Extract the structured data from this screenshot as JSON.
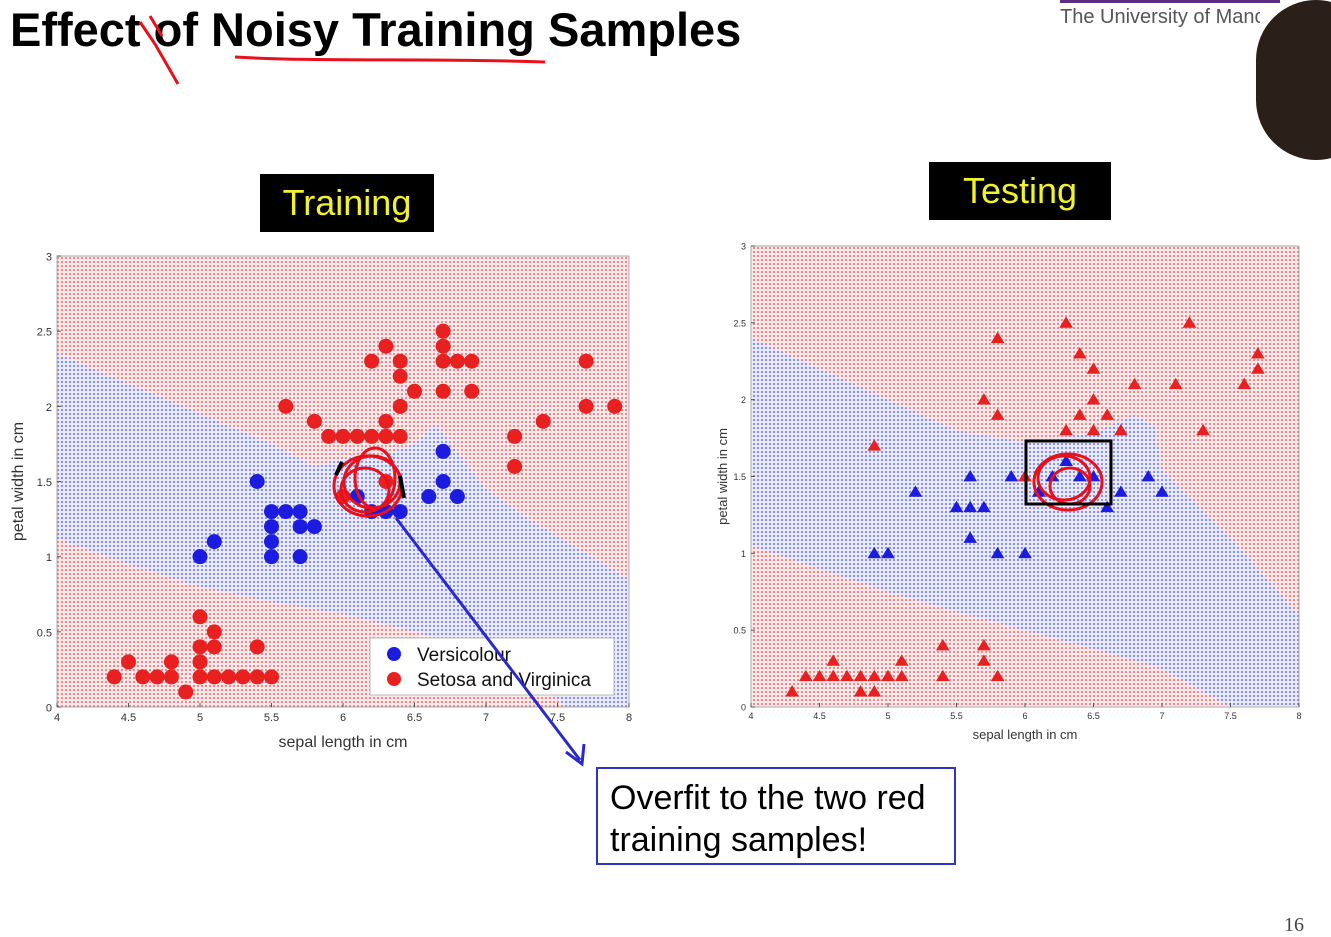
{
  "slide": {
    "title": "Effect of Noisy Training Samples",
    "institution": "The University of Manc",
    "page_number": "16",
    "callout": [
      "Overfit to the two red",
      "training samples!"
    ]
  },
  "colors": {
    "region_red": "#f1c9cc",
    "region_blue": "#c9cdf1",
    "dot_red": "#e82020",
    "dot_blue": "#1c1ce0",
    "annotation_red": "#e8101a",
    "arrow_blue": "#2a2acc"
  },
  "chart_data": [
    {
      "type": "scatter",
      "title": "Training",
      "xlabel": "sepal length in cm",
      "ylabel": "petal width in cm",
      "xlim": [
        4,
        8
      ],
      "ylim": [
        0,
        3
      ],
      "xticks": [
        "4",
        "4.5",
        "5",
        "5.5",
        "6",
        "6.5",
        "7",
        "7.5",
        "8"
      ],
      "yticks": [
        "0",
        "0.5",
        "1",
        "1.5",
        "2",
        "2.5",
        "3"
      ],
      "legend_position": "bottom-right",
      "marker": "circle",
      "series": [
        {
          "name": "Versicolour",
          "color": "#1c1ce0",
          "points": [
            [
              5.0,
              1.0
            ],
            [
              5.1,
              1.1
            ],
            [
              5.4,
              1.5
            ],
            [
              5.5,
              1.0
            ],
            [
              5.5,
              1.1
            ],
            [
              5.5,
              1.2
            ],
            [
              5.5,
              1.3
            ],
            [
              5.6,
              1.3
            ],
            [
              5.7,
              1.0
            ],
            [
              5.7,
              1.2
            ],
            [
              5.7,
              1.3
            ],
            [
              5.8,
              1.2
            ],
            [
              6.1,
              1.4
            ],
            [
              6.2,
              1.3
            ],
            [
              6.3,
              1.3
            ],
            [
              6.4,
              1.3
            ],
            [
              6.6,
              1.4
            ],
            [
              6.7,
              1.5
            ],
            [
              6.7,
              1.7
            ],
            [
              6.8,
              1.4
            ]
          ]
        },
        {
          "name": "Setosa and Virginica",
          "color": "#e82020",
          "points": [
            [
              4.4,
              0.2
            ],
            [
              4.5,
              0.3
            ],
            [
              4.6,
              0.2
            ],
            [
              4.7,
              0.2
            ],
            [
              4.8,
              0.2
            ],
            [
              4.8,
              0.3
            ],
            [
              4.9,
              0.1
            ],
            [
              5.0,
              0.2
            ],
            [
              5.0,
              0.3
            ],
            [
              5.0,
              0.4
            ],
            [
              5.0,
              0.6
            ],
            [
              5.1,
              0.2
            ],
            [
              5.1,
              0.4
            ],
            [
              5.1,
              0.5
            ],
            [
              5.2,
              0.2
            ],
            [
              5.3,
              0.2
            ],
            [
              5.4,
              0.2
            ],
            [
              5.4,
              0.4
            ],
            [
              5.5,
              0.2
            ],
            [
              5.6,
              2.0
            ],
            [
              5.8,
              1.9
            ],
            [
              5.9,
              1.8
            ],
            [
              6.0,
              1.8
            ],
            [
              6.1,
              1.8
            ],
            [
              6.2,
              1.8
            ],
            [
              6.3,
              1.8
            ],
            [
              6.4,
              1.8
            ],
            [
              6.3,
              1.9
            ],
            [
              6.4,
              2.0
            ],
            [
              6.5,
              2.1
            ],
            [
              6.4,
              2.2
            ],
            [
              6.4,
              2.3
            ],
            [
              6.3,
              2.4
            ],
            [
              6.2,
              2.3
            ],
            [
              6.7,
              2.3
            ],
            [
              6.7,
              2.5
            ],
            [
              6.7,
              2.4
            ],
            [
              6.8,
              2.3
            ],
            [
              6.9,
              2.3
            ],
            [
              6.7,
              2.1
            ],
            [
              6.9,
              2.1
            ],
            [
              7.2,
              1.8
            ],
            [
              7.2,
              1.6
            ],
            [
              7.4,
              1.9
            ],
            [
              7.7,
              2.3
            ],
            [
              7.7,
              2.0
            ],
            [
              7.9,
              2.0
            ],
            [
              6.0,
              1.4
            ],
            [
              6.3,
              1.5
            ]
          ]
        }
      ]
    },
    {
      "type": "scatter",
      "title": "Testing",
      "xlabel": "sepal length in cm",
      "ylabel": "petal width in cm",
      "xlim": [
        4,
        8
      ],
      "ylim": [
        0,
        3
      ],
      "xticks": [
        "4",
        "4.5",
        "5",
        "5.5",
        "6",
        "6.5",
        "7",
        "7.5",
        "8"
      ],
      "yticks": [
        "0",
        "0.5",
        "1",
        "1.5",
        "2",
        "2.5",
        "3"
      ],
      "marker": "triangle",
      "series": [
        {
          "color": "#1c1ce0",
          "points": [
            [
              4.9,
              1.0
            ],
            [
              5.0,
              1.0
            ],
            [
              5.2,
              1.4
            ],
            [
              5.5,
              1.3
            ],
            [
              5.6,
              1.3
            ],
            [
              5.6,
              1.5
            ],
            [
              5.6,
              1.1
            ],
            [
              5.7,
              1.3
            ],
            [
              5.8,
              1.0
            ],
            [
              5.9,
              1.5
            ],
            [
              6.0,
              1.0
            ],
            [
              6.1,
              1.4
            ],
            [
              6.2,
              1.5
            ],
            [
              6.3,
              1.6
            ],
            [
              6.4,
              1.5
            ],
            [
              6.5,
              1.5
            ],
            [
              6.6,
              1.3
            ],
            [
              6.7,
              1.4
            ],
            [
              6.9,
              1.5
            ],
            [
              7.0,
              1.4
            ]
          ]
        },
        {
          "color": "#e82020",
          "points": [
            [
              4.3,
              0.1
            ],
            [
              4.4,
              0.2
            ],
            [
              4.5,
              0.2
            ],
            [
              4.6,
              0.3
            ],
            [
              4.6,
              0.2
            ],
            [
              4.7,
              0.2
            ],
            [
              4.8,
              0.2
            ],
            [
              4.8,
              0.1
            ],
            [
              4.9,
              0.1
            ],
            [
              4.9,
              0.2
            ],
            [
              5.0,
              0.2
            ],
            [
              5.1,
              0.2
            ],
            [
              5.1,
              0.3
            ],
            [
              5.4,
              0.2
            ],
            [
              5.4,
              0.4
            ],
            [
              5.7,
              0.4
            ],
            [
              5.7,
              0.3
            ],
            [
              5.8,
              0.2
            ],
            [
              4.9,
              1.7
            ],
            [
              5.7,
              2.0
            ],
            [
              5.8,
              2.4
            ],
            [
              5.8,
              1.9
            ],
            [
              6.0,
              1.5
            ],
            [
              6.3,
              2.5
            ],
            [
              6.4,
              2.3
            ],
            [
              6.5,
              2.2
            ],
            [
              6.5,
              2.0
            ],
            [
              6.5,
              1.8
            ],
            [
              6.4,
              1.9
            ],
            [
              6.3,
              1.8
            ],
            [
              6.6,
              1.9
            ],
            [
              6.7,
              1.8
            ],
            [
              6.8,
              2.1
            ],
            [
              7.1,
              2.1
            ],
            [
              7.2,
              2.5
            ],
            [
              7.3,
              1.8
            ],
            [
              7.6,
              2.1
            ],
            [
              7.7,
              2.3
            ],
            [
              7.7,
              2.2
            ]
          ]
        }
      ]
    }
  ]
}
